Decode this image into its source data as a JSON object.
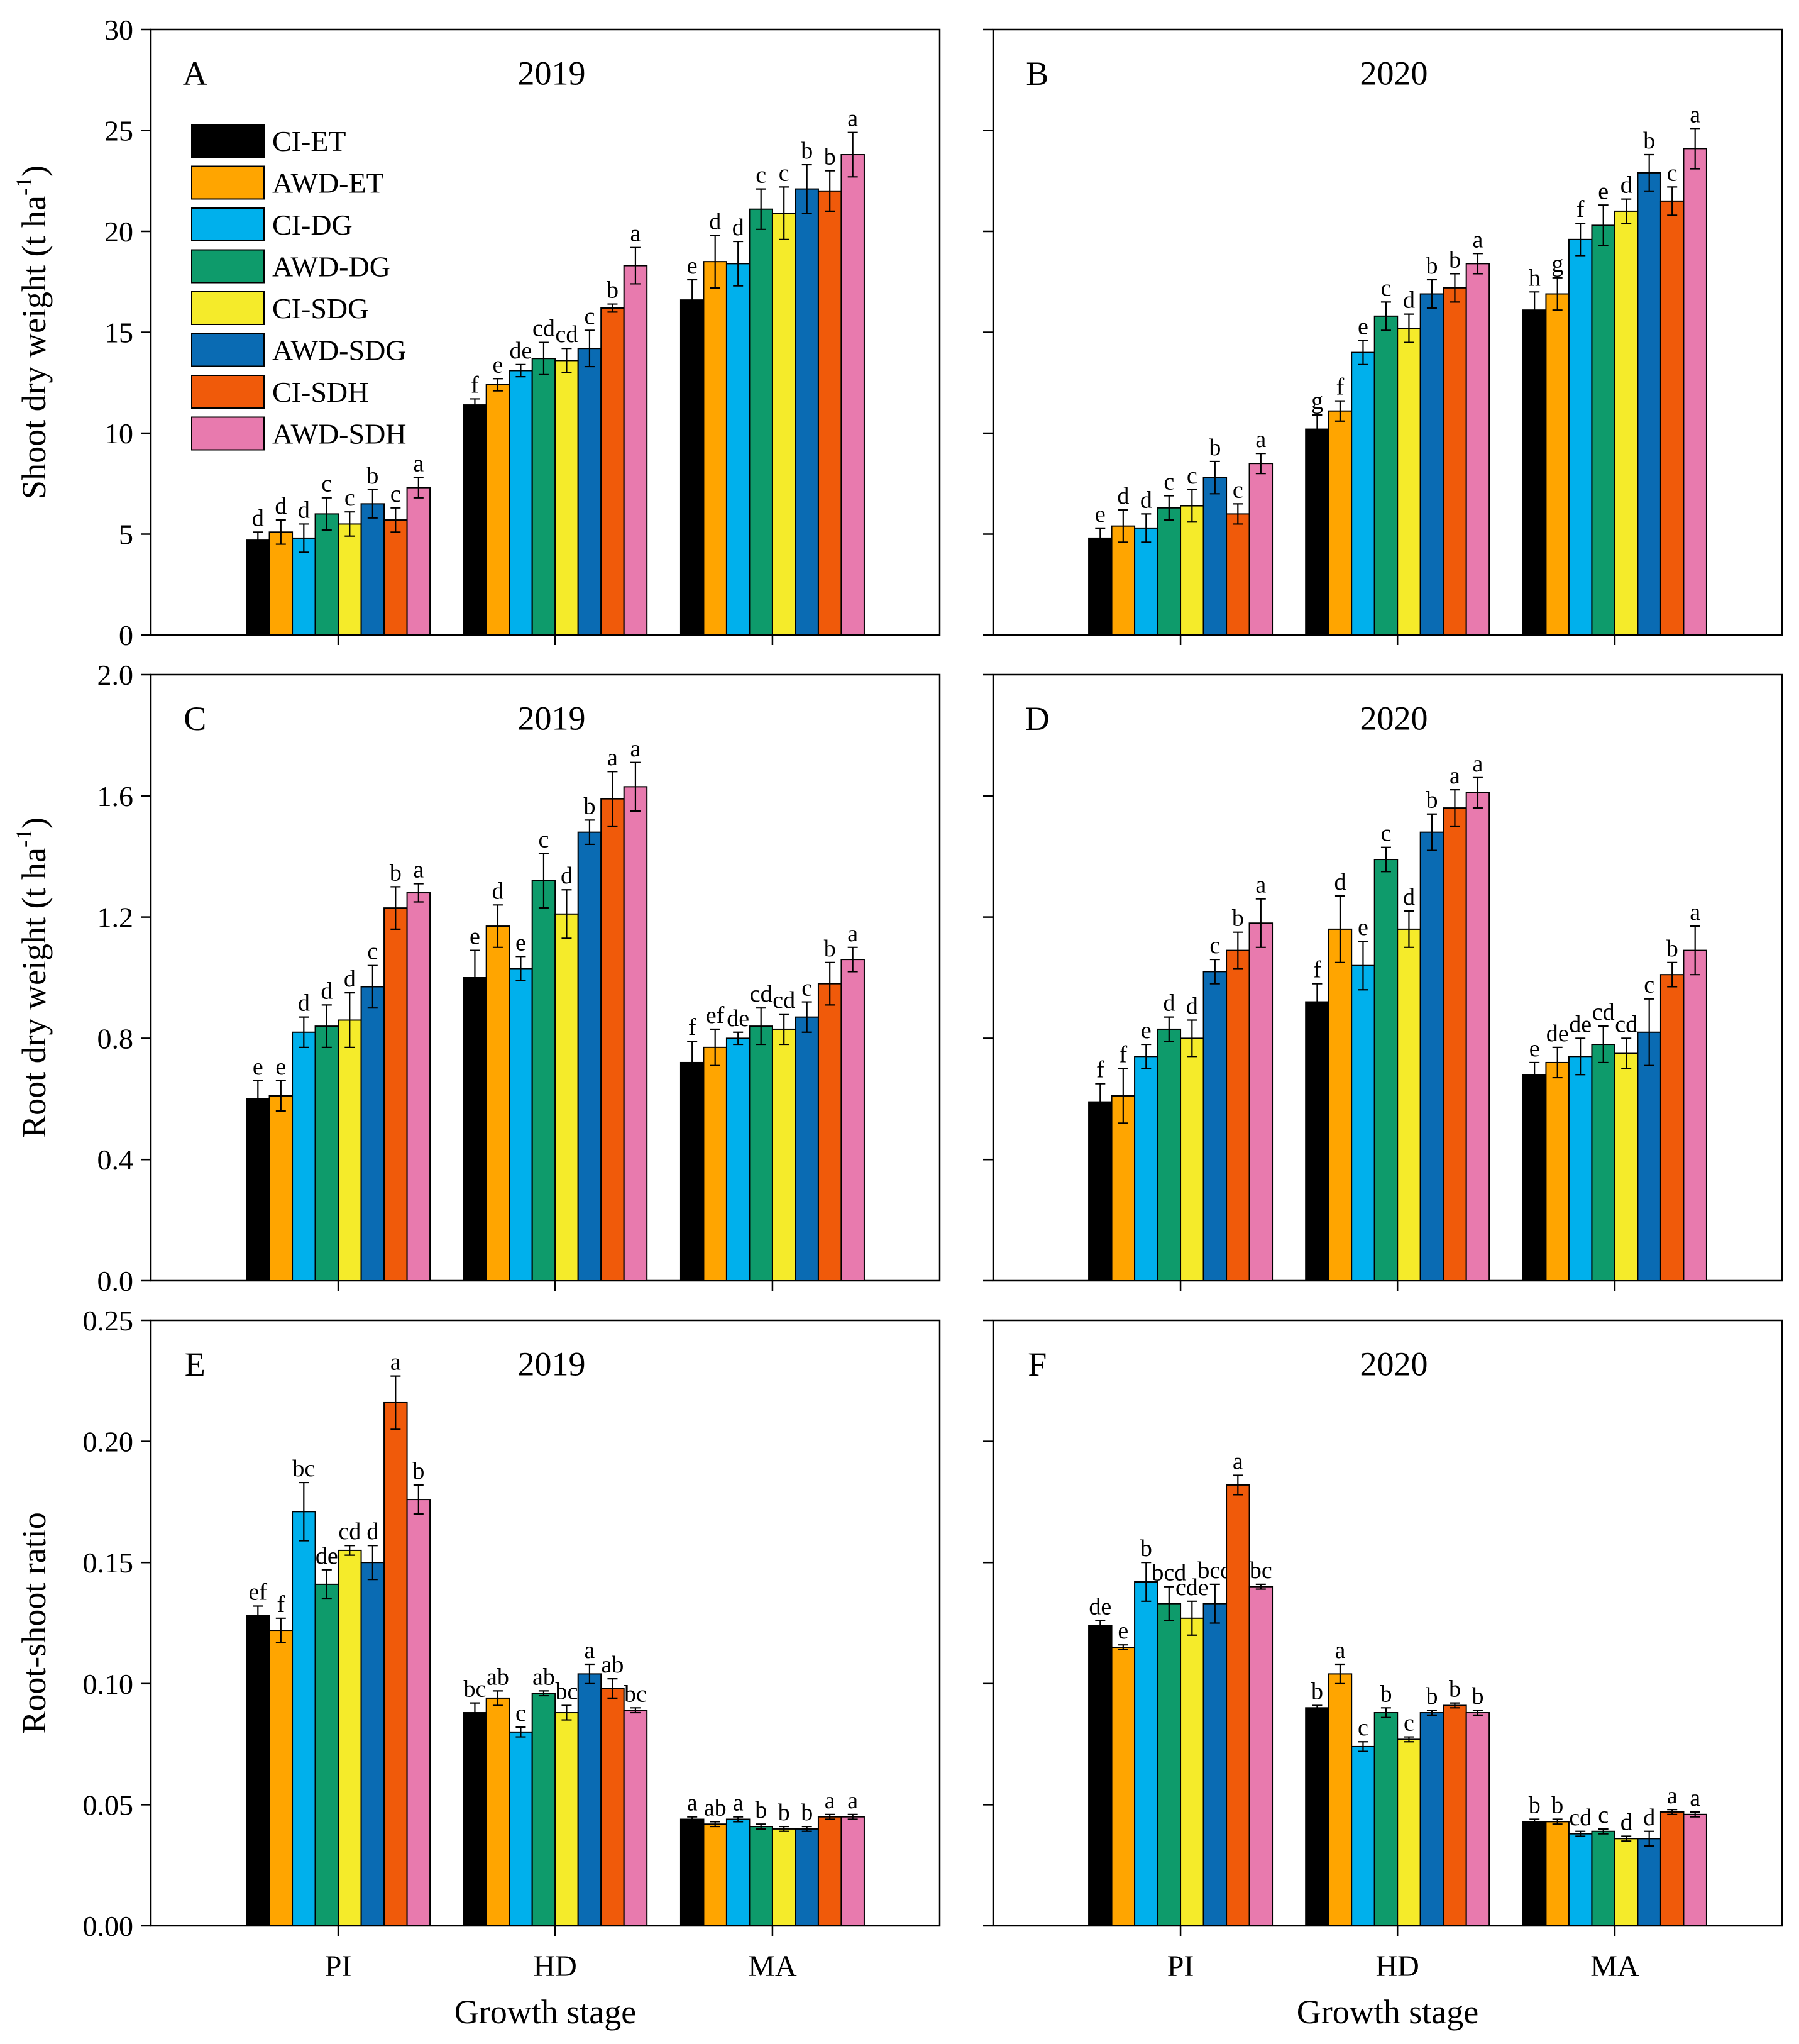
{
  "series_names": [
    "CI-ET",
    "AWD-ET",
    "CI-DG",
    "AWD-DG",
    "CI-SDG",
    "AWD-SDG",
    "CI-SDH",
    "AWD-SDH"
  ],
  "colors": [
    "#000000",
    "#FFA500",
    "#00B0EC",
    "#0E9B6B",
    "#F5EB2A",
    "#0A6BB3",
    "#F05A0A",
    "#E87AAE"
  ],
  "xlabel": "Growth stage",
  "chart_data": [
    {
      "type": "bar",
      "panel": "A",
      "year": "2019",
      "title": "2019",
      "ylabel_main": "Shoot dry weight (t ha",
      "ylabel_sup": "-1",
      "ylabel_end": ")",
      "categories": [
        "PI",
        "HD",
        "MA"
      ],
      "ylim": [
        0,
        30
      ],
      "yticks": [
        "0",
        "5",
        "10",
        "15",
        "20",
        "25",
        "30"
      ],
      "series": [
        {
          "name": "CI-ET",
          "values": [
            4.7,
            11.4,
            16.6
          ],
          "errors": [
            0.4,
            0.3,
            1.0
          ],
          "letters": [
            "d",
            "f",
            "e"
          ]
        },
        {
          "name": "AWD-ET",
          "values": [
            5.1,
            12.4,
            18.5
          ],
          "errors": [
            0.6,
            0.3,
            1.3
          ],
          "letters": [
            "d",
            "e",
            "d"
          ]
        },
        {
          "name": "CI-DG",
          "values": [
            4.8,
            13.1,
            18.4
          ],
          "errors": [
            0.7,
            0.3,
            1.1
          ],
          "letters": [
            "d",
            "de",
            "d"
          ]
        },
        {
          "name": "AWD-DG",
          "values": [
            6.0,
            13.7,
            21.1
          ],
          "errors": [
            0.8,
            0.8,
            1.0
          ],
          "letters": [
            "c",
            "cd",
            "c"
          ]
        },
        {
          "name": "CI-SDG",
          "values": [
            5.5,
            13.6,
            20.9
          ],
          "errors": [
            0.6,
            0.6,
            1.3
          ],
          "letters": [
            "c",
            "cd",
            "c"
          ]
        },
        {
          "name": "AWD-SDG",
          "values": [
            6.5,
            14.2,
            22.1
          ],
          "errors": [
            0.7,
            0.9,
            1.2
          ],
          "letters": [
            "b",
            "c",
            "b"
          ]
        },
        {
          "name": "CI-SDH",
          "values": [
            5.7,
            16.2,
            22.0
          ],
          "errors": [
            0.6,
            0.2,
            1.0
          ],
          "letters": [
            "c",
            "b",
            "b"
          ]
        },
        {
          "name": "AWD-SDH",
          "values": [
            7.3,
            18.3,
            23.8
          ],
          "errors": [
            0.5,
            0.9,
            1.1
          ],
          "letters": [
            "a",
            "a",
            "a"
          ]
        }
      ]
    },
    {
      "type": "bar",
      "panel": "B",
      "year": "2020",
      "title": "2020",
      "categories": [
        "PI",
        "HD",
        "MA"
      ],
      "ylim": [
        0,
        30
      ],
      "series": [
        {
          "name": "CI-ET",
          "values": [
            4.8,
            10.2,
            16.1
          ],
          "errors": [
            0.5,
            0.7,
            0.9
          ],
          "letters": [
            "e",
            "g",
            "h"
          ]
        },
        {
          "name": "AWD-ET",
          "values": [
            5.4,
            11.1,
            16.9
          ],
          "errors": [
            0.8,
            0.5,
            0.8
          ],
          "letters": [
            "d",
            "f",
            "g"
          ]
        },
        {
          "name": "CI-DG",
          "values": [
            5.3,
            14.0,
            19.6
          ],
          "errors": [
            0.7,
            0.6,
            0.8
          ],
          "letters": [
            "d",
            "e",
            "f"
          ]
        },
        {
          "name": "AWD-DG",
          "values": [
            6.3,
            15.8,
            20.3
          ],
          "errors": [
            0.6,
            0.7,
            1.0
          ],
          "letters": [
            "c",
            "c",
            "e"
          ]
        },
        {
          "name": "CI-SDG",
          "values": [
            6.4,
            15.2,
            21.0
          ],
          "errors": [
            0.8,
            0.7,
            0.6
          ],
          "letters": [
            "c",
            "d",
            "d"
          ]
        },
        {
          "name": "AWD-SDG",
          "values": [
            7.8,
            16.9,
            22.9
          ],
          "errors": [
            0.8,
            0.7,
            0.9
          ],
          "letters": [
            "b",
            "b",
            "b"
          ]
        },
        {
          "name": "CI-SDH",
          "values": [
            6.0,
            17.2,
            21.5
          ],
          "errors": [
            0.5,
            0.7,
            0.7
          ],
          "letters": [
            "c",
            "b",
            "c"
          ]
        },
        {
          "name": "AWD-SDH",
          "values": [
            8.5,
            18.4,
            24.1
          ],
          "errors": [
            0.5,
            0.5,
            1.0
          ],
          "letters": [
            "a",
            "a",
            "a"
          ]
        }
      ]
    },
    {
      "type": "bar",
      "panel": "C",
      "year": "2019",
      "title": "2019",
      "ylabel_main": "Root dry weight (t ha",
      "ylabel_sup": "-1",
      "ylabel_end": ")",
      "categories": [
        "PI",
        "HD",
        "MA"
      ],
      "ylim": [
        0,
        2.0
      ],
      "yticks": [
        "0.0",
        "0.4",
        "0.8",
        "1.2",
        "1.6",
        "2.0"
      ],
      "series": [
        {
          "name": "CI-ET",
          "values": [
            0.6,
            1.0,
            0.72
          ],
          "errors": [
            0.06,
            0.09,
            0.07
          ],
          "letters": [
            "e",
            "e",
            "f"
          ]
        },
        {
          "name": "AWD-ET",
          "values": [
            0.61,
            1.17,
            0.77
          ],
          "errors": [
            0.05,
            0.07,
            0.06
          ],
          "letters": [
            "e",
            "d",
            "ef"
          ]
        },
        {
          "name": "CI-DG",
          "values": [
            0.82,
            1.03,
            0.8
          ],
          "errors": [
            0.05,
            0.04,
            0.02
          ],
          "letters": [
            "d",
            "e",
            "de"
          ]
        },
        {
          "name": "AWD-DG",
          "values": [
            0.84,
            1.32,
            0.84
          ],
          "errors": [
            0.07,
            0.09,
            0.06
          ],
          "letters": [
            "d",
            "c",
            "cd"
          ]
        },
        {
          "name": "CI-SDG",
          "values": [
            0.86,
            1.21,
            0.83
          ],
          "errors": [
            0.09,
            0.08,
            0.05
          ],
          "letters": [
            "d",
            "d",
            "cd"
          ]
        },
        {
          "name": "AWD-SDG",
          "values": [
            0.97,
            1.48,
            0.87
          ],
          "errors": [
            0.07,
            0.04,
            0.05
          ],
          "letters": [
            "c",
            "b",
            "c"
          ]
        },
        {
          "name": "CI-SDH",
          "values": [
            1.23,
            1.59,
            0.98
          ],
          "errors": [
            0.07,
            0.09,
            0.07
          ],
          "letters": [
            "b",
            "a",
            "b"
          ]
        },
        {
          "name": "AWD-SDH",
          "values": [
            1.28,
            1.63,
            1.06
          ],
          "errors": [
            0.03,
            0.08,
            0.04
          ],
          "letters": [
            "a",
            "a",
            "a"
          ]
        }
      ]
    },
    {
      "type": "bar",
      "panel": "D",
      "year": "2020",
      "title": "2020",
      "categories": [
        "PI",
        "HD",
        "MA"
      ],
      "ylim": [
        0,
        2.0
      ],
      "series": [
        {
          "name": "CI-ET",
          "values": [
            0.59,
            0.92,
            0.68
          ],
          "errors": [
            0.06,
            0.06,
            0.04
          ],
          "letters": [
            "f",
            "f",
            "e"
          ]
        },
        {
          "name": "AWD-ET",
          "values": [
            0.61,
            1.16,
            0.72
          ],
          "errors": [
            0.09,
            0.11,
            0.05
          ],
          "letters": [
            "f",
            "d",
            "de"
          ]
        },
        {
          "name": "CI-DG",
          "values": [
            0.74,
            1.04,
            0.74
          ],
          "errors": [
            0.04,
            0.08,
            0.06
          ],
          "letters": [
            "e",
            "e",
            "de"
          ]
        },
        {
          "name": "AWD-DG",
          "values": [
            0.83,
            1.39,
            0.78
          ],
          "errors": [
            0.04,
            0.04,
            0.06
          ],
          "letters": [
            "d",
            "c",
            "cd"
          ]
        },
        {
          "name": "CI-SDG",
          "values": [
            0.8,
            1.16,
            0.75
          ],
          "errors": [
            0.06,
            0.06,
            0.05
          ],
          "letters": [
            "d",
            "d",
            "cd"
          ]
        },
        {
          "name": "AWD-SDG",
          "values": [
            1.02,
            1.48,
            0.82
          ],
          "errors": [
            0.04,
            0.06,
            0.11
          ],
          "letters": [
            "c",
            "b",
            "c"
          ]
        },
        {
          "name": "CI-SDH",
          "values": [
            1.09,
            1.56,
            1.01
          ],
          "errors": [
            0.06,
            0.06,
            0.04
          ],
          "letters": [
            "b",
            "a",
            "b"
          ]
        },
        {
          "name": "AWD-SDH",
          "values": [
            1.18,
            1.61,
            1.09
          ],
          "errors": [
            0.08,
            0.05,
            0.08
          ],
          "letters": [
            "a",
            "a",
            "a"
          ]
        }
      ]
    },
    {
      "type": "bar",
      "panel": "E",
      "year": "2019",
      "title": "2019",
      "ylabel_main": "Root-shoot ratio",
      "categories": [
        "PI",
        "HD",
        "MA"
      ],
      "ylim": [
        0,
        0.25
      ],
      "yticks": [
        "0.00",
        "0.05",
        "0.10",
        "0.15",
        "0.20",
        "0.25"
      ],
      "series": [
        {
          "name": "CI-ET",
          "values": [
            0.128,
            0.088,
            0.044
          ],
          "errors": [
            0.004,
            0.004,
            0.001
          ],
          "letters": [
            "ef",
            "bc",
            "a"
          ]
        },
        {
          "name": "AWD-ET",
          "values": [
            0.122,
            0.094,
            0.042
          ],
          "errors": [
            0.005,
            0.003,
            0.001
          ],
          "letters": [
            "f",
            "ab",
            "ab"
          ]
        },
        {
          "name": "CI-DG",
          "values": [
            0.171,
            0.08,
            0.044
          ],
          "errors": [
            0.012,
            0.002,
            0.001
          ],
          "letters": [
            "bc",
            "c",
            "a"
          ]
        },
        {
          "name": "AWD-DG",
          "values": [
            0.141,
            0.096,
            0.041
          ],
          "errors": [
            0.006,
            0.001,
            0.001
          ],
          "letters": [
            "de",
            "ab",
            "b"
          ]
        },
        {
          "name": "CI-SDG",
          "values": [
            0.155,
            0.088,
            0.04
          ],
          "errors": [
            0.002,
            0.003,
            0.001
          ],
          "letters": [
            "cd",
            "bc",
            "b"
          ]
        },
        {
          "name": "AWD-SDG",
          "values": [
            0.15,
            0.104,
            0.04
          ],
          "errors": [
            0.007,
            0.004,
            0.001
          ],
          "letters": [
            "d",
            "a",
            "b"
          ]
        },
        {
          "name": "CI-SDH",
          "values": [
            0.216,
            0.098,
            0.045
          ],
          "errors": [
            0.011,
            0.004,
            0.001
          ],
          "letters": [
            "a",
            "ab",
            "a"
          ]
        },
        {
          "name": "AWD-SDH",
          "values": [
            0.176,
            0.089,
            0.045
          ],
          "errors": [
            0.006,
            0.001,
            0.001
          ],
          "letters": [
            "b",
            "bc",
            "a"
          ]
        }
      ]
    },
    {
      "type": "bar",
      "panel": "F",
      "year": "2020",
      "title": "2020",
      "categories": [
        "PI",
        "HD",
        "MA"
      ],
      "ylim": [
        0,
        0.25
      ],
      "series": [
        {
          "name": "CI-ET",
          "values": [
            0.124,
            0.09,
            0.043
          ],
          "errors": [
            0.002,
            0.001,
            0.001
          ],
          "letters": [
            "de",
            "b",
            "b"
          ]
        },
        {
          "name": "AWD-ET",
          "values": [
            0.115,
            0.104,
            0.043
          ],
          "errors": [
            0.001,
            0.004,
            0.001
          ],
          "letters": [
            "e",
            "a",
            "b"
          ]
        },
        {
          "name": "CI-DG",
          "values": [
            0.142,
            0.074,
            0.038
          ],
          "errors": [
            0.008,
            0.002,
            0.001
          ],
          "letters": [
            "b",
            "c",
            "cd"
          ]
        },
        {
          "name": "AWD-DG",
          "values": [
            0.133,
            0.088,
            0.039
          ],
          "errors": [
            0.007,
            0.002,
            0.001
          ],
          "letters": [
            "bcd",
            "b",
            "c"
          ]
        },
        {
          "name": "CI-SDG",
          "values": [
            0.127,
            0.077,
            0.036
          ],
          "errors": [
            0.007,
            0.001,
            0.001
          ],
          "letters": [
            "cde",
            "c",
            "d"
          ]
        },
        {
          "name": "AWD-SDG",
          "values": [
            0.133,
            0.088,
            0.036
          ],
          "errors": [
            0.008,
            0.001,
            0.003
          ],
          "letters": [
            "bcd",
            "b",
            "d"
          ]
        },
        {
          "name": "CI-SDH",
          "values": [
            0.182,
            0.091,
            0.047
          ],
          "errors": [
            0.004,
            0.001,
            0.001
          ],
          "letters": [
            "a",
            "b",
            "a"
          ]
        },
        {
          "name": "AWD-SDH",
          "values": [
            0.14,
            0.088,
            0.046
          ],
          "errors": [
            0.001,
            0.001,
            0.001
          ],
          "letters": [
            "bc",
            "b",
            "a"
          ]
        }
      ]
    }
  ]
}
